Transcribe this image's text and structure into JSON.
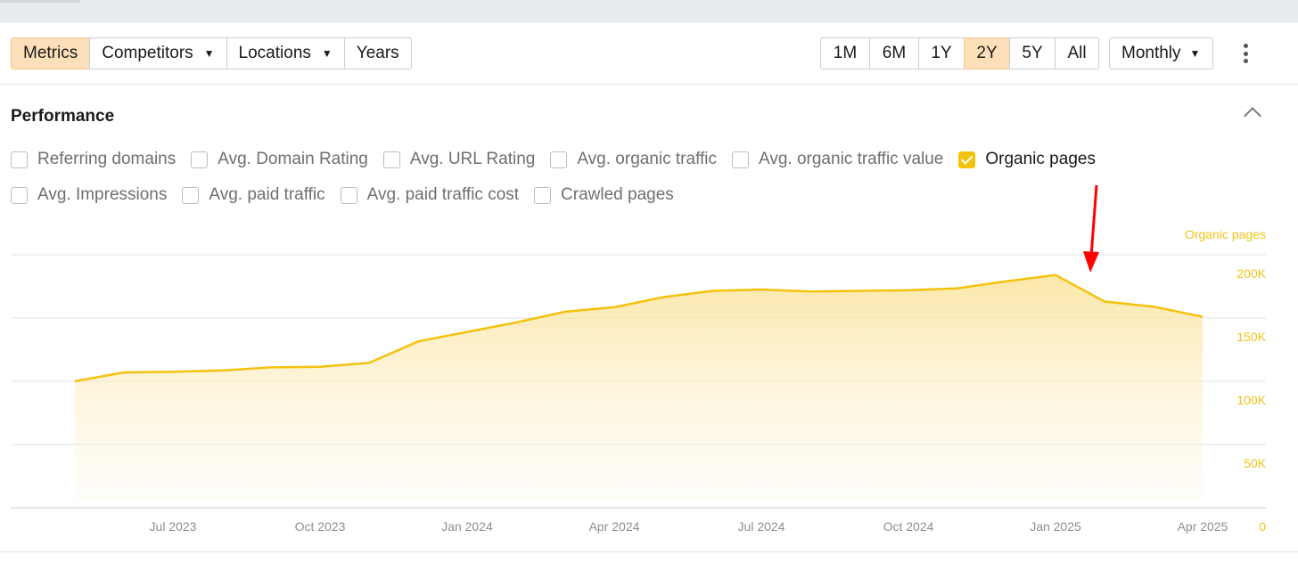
{
  "toolbar": {
    "tabs": [
      {
        "label": "Metrics",
        "active": true
      },
      {
        "label": "Competitors",
        "dropdown": true
      },
      {
        "label": "Locations",
        "dropdown": true
      },
      {
        "label": "Years"
      }
    ],
    "ranges": [
      {
        "label": "1M"
      },
      {
        "label": "6M"
      },
      {
        "label": "1Y"
      },
      {
        "label": "2Y",
        "active": true
      },
      {
        "label": "5Y"
      },
      {
        "label": "All"
      }
    ],
    "interval": "Monthly"
  },
  "section": {
    "title": "Performance"
  },
  "metrics_row1": [
    {
      "label": "Referring domains",
      "checked": false
    },
    {
      "label": "Avg. Domain Rating",
      "checked": false
    },
    {
      "label": "Avg. URL Rating",
      "checked": false
    },
    {
      "label": "Avg. organic traffic",
      "checked": false
    },
    {
      "label": "Avg. organic traffic value",
      "checked": false
    },
    {
      "label": "Organic pages",
      "checked": true
    }
  ],
  "metrics_row2": [
    {
      "label": "Avg. Impressions",
      "checked": false
    },
    {
      "label": "Avg. paid traffic",
      "checked": false
    },
    {
      "label": "Avg. paid traffic cost",
      "checked": false
    },
    {
      "label": "Crawled pages",
      "checked": false
    }
  ],
  "colors": {
    "series": "#f4c20d",
    "axis_text": "#f0c419",
    "active_bg": "#fde0b9",
    "arrow": "#ff0000"
  },
  "chart_data": {
    "type": "area",
    "series": [
      {
        "name": "Organic pages",
        "x": [
          "2023-05",
          "2023-06",
          "2023-07",
          "2023-08",
          "2023-09",
          "2023-10",
          "2023-11",
          "2023-12",
          "2024-01",
          "2024-02",
          "2024-03",
          "2024-04",
          "2024-05",
          "2024-06",
          "2024-07",
          "2024-08",
          "2024-09",
          "2024-10",
          "2024-11",
          "2024-12",
          "2025-01",
          "2025-02",
          "2025-03",
          "2025-04"
        ],
        "values": [
          100000,
          107000,
          107500,
          108500,
          111000,
          111500,
          114500,
          131500,
          139000,
          146500,
          155000,
          158500,
          166500,
          171500,
          172500,
          171000,
          171500,
          172000,
          173500,
          179000,
          184000,
          163000,
          159000,
          151000
        ]
      }
    ],
    "x_ticks": [
      "Jul 2023",
      "Oct 2023",
      "Jan 2024",
      "Apr 2024",
      "Jul 2024",
      "Oct 2024",
      "Jan 2025",
      "Apr 2025"
    ],
    "x_tick_dates": [
      "2023-07",
      "2023-10",
      "2024-01",
      "2024-04",
      "2024-07",
      "2024-10",
      "2025-01",
      "2025-04"
    ],
    "y_ticks": [
      0,
      50000,
      100000,
      150000,
      200000
    ],
    "y_tick_labels": [
      "0",
      "50K",
      "100K",
      "150K",
      "200K"
    ],
    "y_axis_title": "Organic pages",
    "ylim": [
      0,
      200000
    ],
    "grid": true,
    "y_axis_side": "right",
    "annotation": {
      "type": "arrow",
      "points_to": "2025-01"
    }
  }
}
